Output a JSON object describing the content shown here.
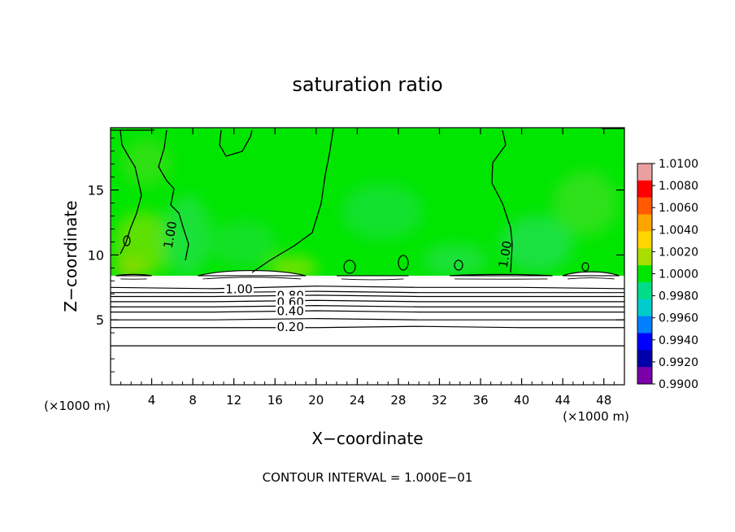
{
  "chart_data": {
    "type": "heatmap",
    "title": "saturation ratio",
    "xlabel": "X−coordinate",
    "ylabel": "Z−coordinate",
    "x_unit_left": "(×1000 m)",
    "x_unit_right": "(×1000 m)",
    "footer": "CONTOUR INTERVAL = 1.000E−01",
    "xlim": [
      0,
      50
    ],
    "ylim": [
      0,
      19.8
    ],
    "x_ticks": [
      4,
      8,
      12,
      16,
      20,
      24,
      28,
      32,
      36,
      40,
      44,
      48
    ],
    "x_tick_labels": [
      "4",
      "8",
      "12",
      "16",
      "20",
      "24",
      "28",
      "32",
      "36",
      "40",
      "44",
      "48"
    ],
    "y_ticks": [
      5,
      10,
      15
    ],
    "y_tick_labels": [
      "5",
      "10",
      "15"
    ],
    "colorbar": {
      "range": [
        0.99,
        1.01
      ],
      "labels": [
        "1.0100",
        "1.0080",
        "1.0060",
        "1.0040",
        "1.0020",
        "1.0000",
        "0.9980",
        "0.9960",
        "0.9940",
        "0.9920",
        "0.9900"
      ],
      "colors": [
        "#e8a0a0",
        "#ff0000",
        "#ff5a00",
        "#ffa500",
        "#ffd500",
        "#aadd00",
        "#00e600",
        "#00dd88",
        "#00cccc",
        "#0080ff",
        "#0000ff",
        "#0000aa",
        "#7a00aa"
      ]
    },
    "contour_levels_labeled": [
      "1.00",
      "1.00",
      "1.00",
      "0.80",
      "0.60",
      "0.40",
      "0.20"
    ],
    "contours": [
      {
        "level": 0.1,
        "z": [
          3.0,
          3.0,
          3.0,
          3.0,
          3.0,
          3.0
        ]
      },
      {
        "level": 0.2,
        "z": [
          4.4,
          4.4,
          4.4,
          4.5,
          4.4,
          4.4
        ]
      },
      {
        "level": 0.3,
        "z": [
          5.0,
          5.0,
          5.1,
          5.0,
          5.0,
          5.0
        ]
      },
      {
        "level": 0.4,
        "z": [
          5.6,
          5.6,
          5.7,
          5.6,
          5.6,
          5.6
        ]
      },
      {
        "level": 0.5,
        "z": [
          6.0,
          6.0,
          6.1,
          6.0,
          6.0,
          6.0
        ]
      },
      {
        "level": 0.6,
        "z": [
          6.4,
          6.4,
          6.5,
          6.4,
          6.4,
          6.4
        ]
      },
      {
        "level": 0.7,
        "z": [
          6.8,
          6.8,
          6.9,
          6.8,
          6.8,
          6.8
        ]
      },
      {
        "level": 0.8,
        "z": [
          7.1,
          7.1,
          7.2,
          7.1,
          7.1,
          7.1
        ]
      },
      {
        "level": 0.9,
        "z": [
          7.5,
          7.4,
          7.6,
          7.5,
          7.5,
          7.4
        ]
      }
    ],
    "contour_x": [
      0,
      10,
      20,
      30,
      40,
      50
    ],
    "contour_label_positions": [
      {
        "text": "1.00",
        "x": 6.2,
        "z": 11.5
      },
      {
        "text": "1.00",
        "x": 38.8,
        "z": 10.0
      },
      {
        "text": "1.00",
        "x": 12.5,
        "z": 7.3
      },
      {
        "text": "0.80",
        "x": 17.5,
        "z": 6.8
      },
      {
        "text": "0.60",
        "x": 17.5,
        "z": 6.3
      },
      {
        "text": "0.40",
        "x": 17.5,
        "z": 5.6
      },
      {
        "text": "0.20",
        "x": 17.5,
        "z": 4.4
      }
    ],
    "cloud_layer_top_z": 8.4,
    "clouds": [
      {
        "x": [
          0.5,
          4.0
        ],
        "z_top": 8.5
      },
      {
        "x": [
          8.5,
          19.0
        ],
        "z_top": 8.8
      },
      {
        "x": [
          22.0,
          29.0
        ],
        "z_top": 8.4
      },
      {
        "x": [
          33.0,
          43.0
        ],
        "z_top": 8.5
      },
      {
        "x": [
          44.0,
          49.5
        ],
        "z_top": 8.7
      }
    ]
  }
}
